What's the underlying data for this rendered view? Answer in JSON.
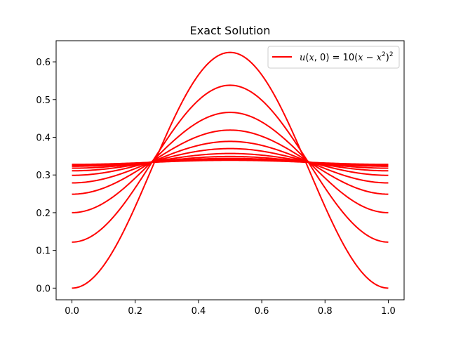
{
  "chart_data": {
    "type": "line",
    "title": "Exact Solution",
    "xlabel": "",
    "ylabel": "",
    "xlim": [
      -0.05,
      1.05
    ],
    "ylim": [
      -0.031,
      0.656
    ],
    "xticks": [
      0.0,
      0.2,
      0.4,
      0.6,
      0.8,
      1.0
    ],
    "xtick_labels": [
      "0.0",
      "0.2",
      "0.4",
      "0.6",
      "0.8",
      "1.0"
    ],
    "yticks": [
      0.0,
      0.1,
      0.2,
      0.3,
      0.4,
      0.5,
      0.6
    ],
    "ytick_labels": [
      "0.0",
      "0.1",
      "0.2",
      "0.3",
      "0.4",
      "0.5",
      "0.6"
    ],
    "grid": false,
    "legend_position": "upper right",
    "color": "#ff0000",
    "legend_label": "u(x,0) = 10(x − x²)²",
    "series": [
      {
        "name": "u(x,0) = 10(x − x²)²",
        "x0_value": 0.0,
        "center_value": 0.625
      },
      {
        "x0_value": 0.122,
        "center_value": 0.538
      },
      {
        "x0_value": 0.2,
        "center_value": 0.466
      },
      {
        "x0_value": 0.249,
        "center_value": 0.419
      },
      {
        "x0_value": 0.279,
        "center_value": 0.389
      },
      {
        "x0_value": 0.299,
        "center_value": 0.37
      },
      {
        "x0_value": 0.311,
        "center_value": 0.357
      },
      {
        "x0_value": 0.318,
        "center_value": 0.349
      },
      {
        "x0_value": 0.323,
        "center_value": 0.344
      },
      {
        "x0_value": 0.326,
        "center_value": 0.341
      },
      {
        "x0_value": 0.328,
        "center_value": 0.339
      }
    ]
  }
}
